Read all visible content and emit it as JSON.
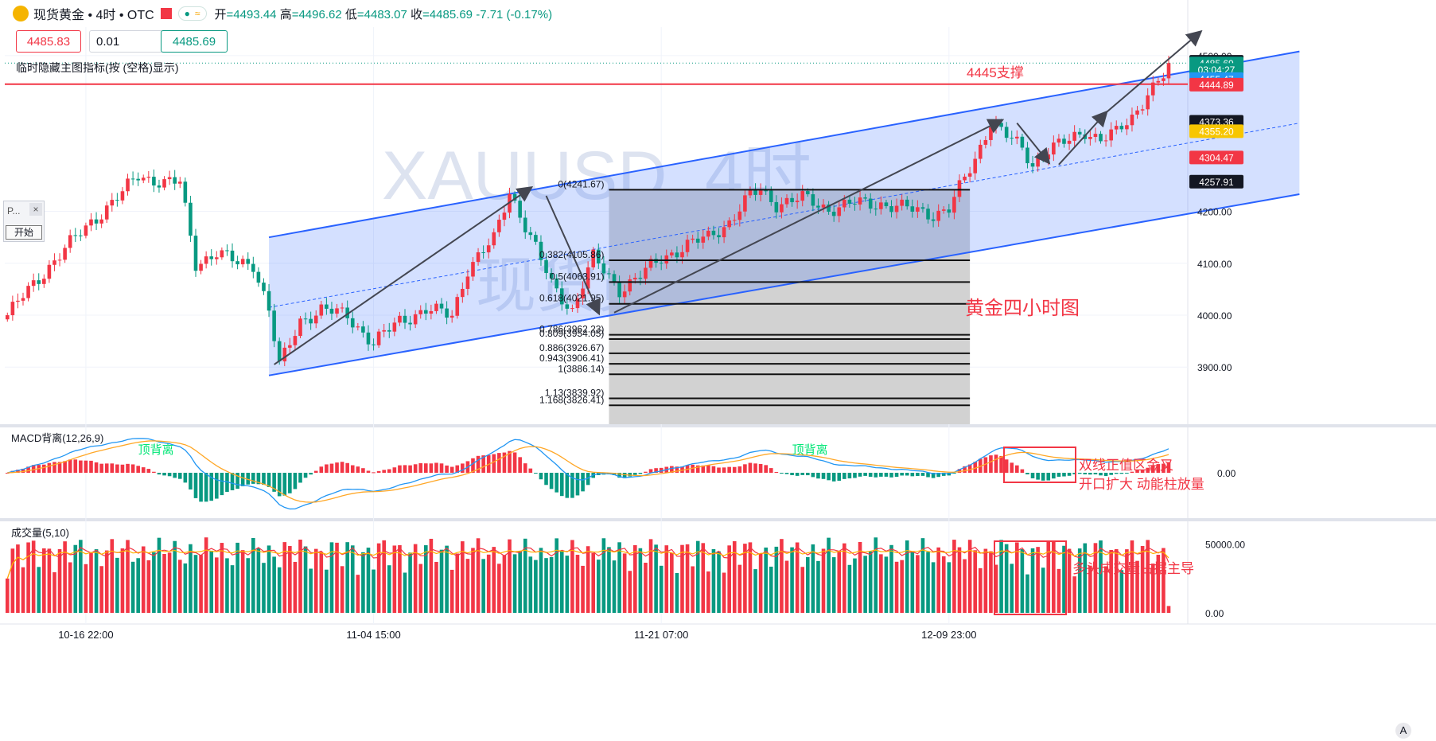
{
  "header": {
    "symbol": "现货黄金 • 4时 • OTC",
    "open_label": "开",
    "open_value": "=4493.44",
    "high_label": "高",
    "high_value": "=4496.62",
    "low_label": "低",
    "low_value": "=4483.07",
    "close_label": "收",
    "close_value": "=4485.69",
    "change": "-7.71 (-0.17%)",
    "bid": "4485.83",
    "quantity": "0.01",
    "ask": "4485.69",
    "note": "临时隐藏主图指标(按 (空格)显示)"
  },
  "panel": {
    "title": "P...",
    "close": "×",
    "start": "开始"
  },
  "corner_button": "A",
  "colors": {
    "up": "#f23645",
    "down": "#089981",
    "channel": "#2962ff",
    "support": "#f23645",
    "annotation": "#f23645",
    "macd_green": "#00e676"
  },
  "chart_data": [
    {
      "type": "candlestick",
      "title": "XAUUSD, 4时",
      "watermark": "XAUUSD, 4时",
      "watermark2": "现货黄金",
      "x_ticks": [
        "10-16 22:00",
        "11-04 15:00",
        "11-21 07:00",
        "12-09 23:00"
      ],
      "y_ticks": [
        3900,
        4000,
        4100,
        4200,
        4500
      ],
      "y_tick_labels": [
        "3900.00",
        "4000.00",
        "4100.00",
        "4200.00",
        "4500.00"
      ],
      "ylim": [
        3790,
        4555
      ],
      "grid": true,
      "ohlc_path": [
        [
          0,
          4000
        ],
        [
          8,
          4095
        ],
        [
          16,
          4180
        ],
        [
          22,
          4235
        ],
        [
          25,
          4270
        ],
        [
          30,
          4255
        ],
        [
          33,
          4255
        ],
        [
          36,
          4100
        ],
        [
          40,
          4120
        ],
        [
          44,
          4100
        ],
        [
          47,
          4100
        ],
        [
          50,
          4010
        ],
        [
          52,
          3900
        ],
        [
          56,
          3990
        ],
        [
          60,
          4010
        ],
        [
          65,
          4000
        ],
        [
          70,
          3945
        ],
        [
          75,
          3990
        ],
        [
          80,
          4010
        ],
        [
          85,
          4000
        ],
        [
          88,
          4090
        ],
        [
          93,
          4145
        ],
        [
          96,
          4240
        ],
        [
          100,
          4150
        ],
        [
          104,
          4060
        ],
        [
          108,
          4010
        ],
        [
          112,
          4110
        ],
        [
          117,
          4050
        ],
        [
          121,
          4075
        ],
        [
          125,
          4110
        ],
        [
          130,
          4135
        ],
        [
          134,
          4150
        ],
        [
          138,
          4180
        ],
        [
          142,
          4230
        ],
        [
          144,
          4240
        ],
        [
          147,
          4215
        ],
        [
          152,
          4225
        ],
        [
          157,
          4205
        ],
        [
          162,
          4215
        ],
        [
          167,
          4215
        ],
        [
          172,
          4205
        ],
        [
          177,
          4195
        ],
        [
          180,
          4205
        ],
        [
          185,
          4300
        ],
        [
          188,
          4375
        ],
        [
          191,
          4345
        ],
        [
          194,
          4320
        ],
        [
          196,
          4290
        ],
        [
          199,
          4320
        ],
        [
          203,
          4335
        ],
        [
          206,
          4355
        ],
        [
          209,
          4340
        ],
        [
          212,
          4350
        ],
        [
          215,
          4380
        ],
        [
          218,
          4430
        ],
        [
          221,
          4460
        ],
        [
          222,
          4488
        ]
      ],
      "last_price": 4485.69,
      "price_labels": [
        {
          "value": 4488.81,
          "text": "4488.81",
          "bg": "#131722"
        },
        {
          "value": 4485.69,
          "text": "4485.69",
          "bg": "#089981"
        },
        {
          "value": 4473.4,
          "text": "03:04:27",
          "bg": "#089981"
        },
        {
          "value": 4455.47,
          "text": "4455.47",
          "bg": "#2196f3"
        },
        {
          "value": 4444.89,
          "text": "4444.89",
          "bg": "#f23645"
        },
        {
          "value": 4373.36,
          "text": "4373.36",
          "bg": "#131722"
        },
        {
          "value": 4355.2,
          "text": "4355.20",
          "bg": "#f7c600"
        },
        {
          "value": 4304.47,
          "text": "4304.47",
          "bg": "#f23645"
        },
        {
          "value": 4257.91,
          "text": "4257.91",
          "bg": "#131722"
        }
      ],
      "support": {
        "value": 4445,
        "label": "4445支撑"
      },
      "channel": {
        "upper": [
          [
            50,
            4150
          ],
          [
            247,
            4508
          ]
        ],
        "lower": [
          [
            50,
            3884
          ],
          [
            247,
            4233
          ]
        ],
        "mid": [
          [
            50,
            4015
          ],
          [
            247,
            4370
          ]
        ]
      },
      "fibonacci": {
        "x_range": [
          115,
          184
        ],
        "levels": [
          {
            "ratio": "0",
            "price": 4241.67
          },
          {
            "ratio": "0.382",
            "price": 4105.86
          },
          {
            "ratio": "0.5",
            "price": 4063.91
          },
          {
            "ratio": "0.618",
            "price": 4021.95
          },
          {
            "ratio": "0.786",
            "price": 3962.23
          },
          {
            "ratio": "0.809",
            "price": 3954.05
          },
          {
            "ratio": "0.886",
            "price": 3926.67
          },
          {
            "ratio": "0.943",
            "price": 3906.41
          },
          {
            "ratio": "1",
            "price": 3886.14
          },
          {
            "ratio": "1.13",
            "price": 3839.92
          },
          {
            "ratio": "1.168",
            "price": 3826.41
          }
        ]
      },
      "arrows": [
        [
          [
            51,
            3905
          ],
          [
            100,
            4245
          ]
        ],
        [
          [
            103,
            4230
          ],
          [
            113,
            4005
          ]
        ],
        [
          [
            116,
            4005
          ],
          [
            190,
            4375
          ]
        ],
        [
          [
            193,
            4370
          ],
          [
            199,
            4295
          ]
        ],
        [
          [
            201,
            4290
          ],
          [
            210,
            4390
          ]
        ],
        [
          [
            210,
            4390
          ],
          [
            228,
            4545
          ]
        ]
      ],
      "annotation": "黄金四小时图"
    },
    {
      "type": "macd",
      "title": "MACD背离(12,26,9)",
      "y_ticks": [
        0
      ],
      "y_tick_labels": [
        "0.00"
      ],
      "labels": [
        {
          "text": "顶背离",
          "x": 25
        },
        {
          "text": "顶背离",
          "x": 150
        }
      ],
      "annotation_lines": [
        "双线正值区金叉",
        "开口扩大  动能柱放量"
      ]
    },
    {
      "type": "volume",
      "title": "成交量(5,10)",
      "y_ticks": [
        0,
        50000
      ],
      "y_tick_labels": [
        "0.00",
        "50000.00"
      ],
      "annotation": "多头成交量占据主导"
    }
  ]
}
